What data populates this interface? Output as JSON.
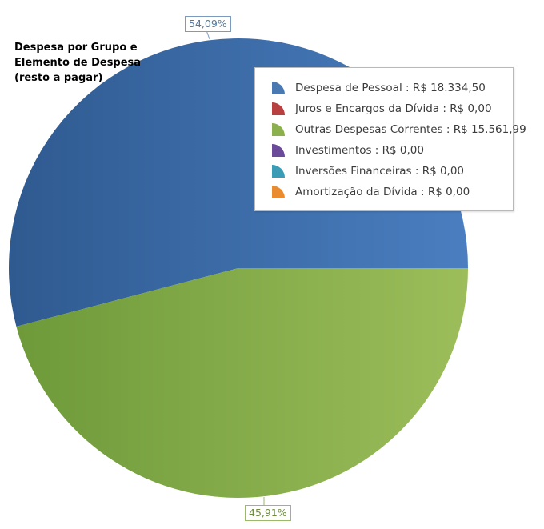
{
  "chart_data": {
    "type": "pie",
    "title": "Despesa por Grupo e Elemento de Despesa (resto a pagar)",
    "slices": [
      {
        "label": "Despesa de Pessoal",
        "legend_text": "Despesa de Pessoal : R$ 18.334,50",
        "value": 18334.5,
        "color": "#4a78b0",
        "color_dark": "#2f5a8e"
      },
      {
        "label": "Juros e Encargos da Dívida",
        "legend_text": "Juros e Encargos da Dívida : R$ 0,00",
        "value": 0,
        "color": "#b84040",
        "color_dark": "#8a2a2a"
      },
      {
        "label": "Outras Despesas Correntes",
        "legend_text": "Outras Despesas Correntes : R$ 15.561,99",
        "value": 15561.99,
        "color": "#8bb04c",
        "color_dark": "#6a8f36"
      },
      {
        "label": "Investimentos",
        "legend_text": "Investimentos : R$ 0,00",
        "value": 0,
        "color": "#6b4a9a",
        "color_dark": "#4e3274"
      },
      {
        "label": "Inversões Financeiras",
        "legend_text": "Inversões Financeiras : R$ 0,00",
        "value": 0,
        "color": "#3a9db5",
        "color_dark": "#237a8e"
      },
      {
        "label": "Amortização da Dívida",
        "legend_text": "Amortização da Dívida : R$ 0,00",
        "value": 0,
        "color": "#e98b2e",
        "color_dark": "#c46c16"
      }
    ],
    "percent_labels": [
      "54,09%",
      "45,91%"
    ],
    "legend_position": "top-right"
  }
}
